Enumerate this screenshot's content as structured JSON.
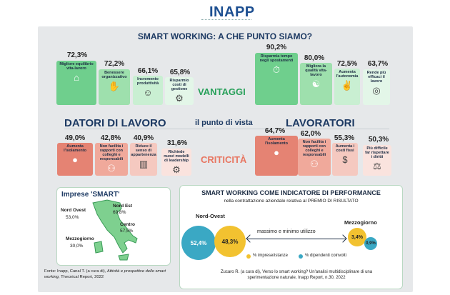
{
  "logo": {
    "text": "INAPP"
  },
  "title": "SMART WORKING: A CHE PUNTO  SIAMO?",
  "labels": {
    "datori": "DATORI DI LAVORO",
    "lavoratori": "LAVORATORI",
    "punto_vista": "il punto di vista",
    "vantaggi": "VANTAGGI",
    "criticita": "CRITICITÀ"
  },
  "datori_vantaggi": [
    {
      "pct": "72,3%",
      "label": "Migliore equilibrio vita-lavoro",
      "icon": "work-life-balance-icon"
    },
    {
      "pct": "72,2%",
      "label": "Benessere organizzativo",
      "icon": "handshake-icon"
    },
    {
      "pct": "66,1%",
      "label": "Incremento produttività",
      "icon": "productivity-icon"
    },
    {
      "pct": "65,8%",
      "label": "Risparmio costi di gestione",
      "icon": "savings-icon"
    }
  ],
  "lavoratori_vantaggi": [
    {
      "pct": "90,2%",
      "label": "Risparmia tempo negli spostamenti",
      "icon": "commute-icon"
    },
    {
      "pct": "80,0%",
      "label": "Migliora la qualità vita-lavoro",
      "icon": "yoga-icon"
    },
    {
      "pct": "72,5%",
      "label": "Aumenta l'autonomia",
      "icon": "autonomy-icon"
    },
    {
      "pct": "63,7%",
      "label": "Rende più efficaci il lavoro",
      "icon": "target-icon"
    }
  ],
  "datori_criticita": [
    {
      "pct": "49,0%",
      "label": "Aumenta l'isolamento",
      "icon": "isolation-icon"
    },
    {
      "pct": "42,8%",
      "label": "Non facilita i rapporti con colleghi e responsabili",
      "icon": "team-icon"
    },
    {
      "pct": "40,9%",
      "label": "Riduce il senso di appartenenza",
      "icon": "belonging-icon"
    },
    {
      "pct": "31,6%",
      "label": "Richiede nuovi modelli di leadership",
      "icon": "leadership-icon"
    }
  ],
  "lavoratori_criticita": [
    {
      "pct": "64,7%",
      "label": "Aumenta l'isolamento",
      "icon": "isolation-icon"
    },
    {
      "pct": "62,0%",
      "label": "Non facilita i rapporti con colleghi e responsabili",
      "icon": "team-icon"
    },
    {
      "pct": "55,3%",
      "label": "Aumenta i costi fissi",
      "icon": "costs-icon"
    },
    {
      "pct": "50,3%",
      "label": "Più difficile far rispettare i diritti",
      "icon": "rights-icon"
    }
  ],
  "imprese": {
    "title": "Imprese 'SMART'",
    "regions": [
      {
        "name": "Nord Ovest",
        "value": "53,0%"
      },
      {
        "name": "Nord Est",
        "value": "69,8%"
      },
      {
        "name": "Centro",
        "value": "57,5%"
      },
      {
        "name": "Mezzogiorno",
        "value": "30,0%"
      }
    ]
  },
  "source_left": {
    "prefix": "Fonte: Inapp, Canal T. (a cura di), ",
    "italic": "Attività e prospettive dello smart working",
    "suffix": ", Thecnical Report, 2022"
  },
  "performance": {
    "title": "SMART WORKING COME INDICATORE DI PERFORMANCE",
    "subtitle": "nella contrattazione aziendale relativa al PREMIO DI RISULTATO",
    "nord_ovest": "Nord-Ovest",
    "mezzogiorno": "Mezzogiorno",
    "range_label": "massimo e minimo utilizzo",
    "bubbles": {
      "no_dipendenti": "52,4%",
      "no_imprese": "48,3%",
      "mz_imprese": "3,4%",
      "mz_dipendenti": "0,9%"
    },
    "legend_imprese": "% imprese/istanze",
    "legend_dipendenti": "% dipendenti coinvolti",
    "colors": {
      "imprese": "#f2c230",
      "dipendenti": "#3aa8c4"
    },
    "source": "Zucaro R. (a cura di), Verso lo smart working? Un'analisi multidisciplinare di una sperimentazione naturale, Inapp Report, n.30, 2022"
  }
}
